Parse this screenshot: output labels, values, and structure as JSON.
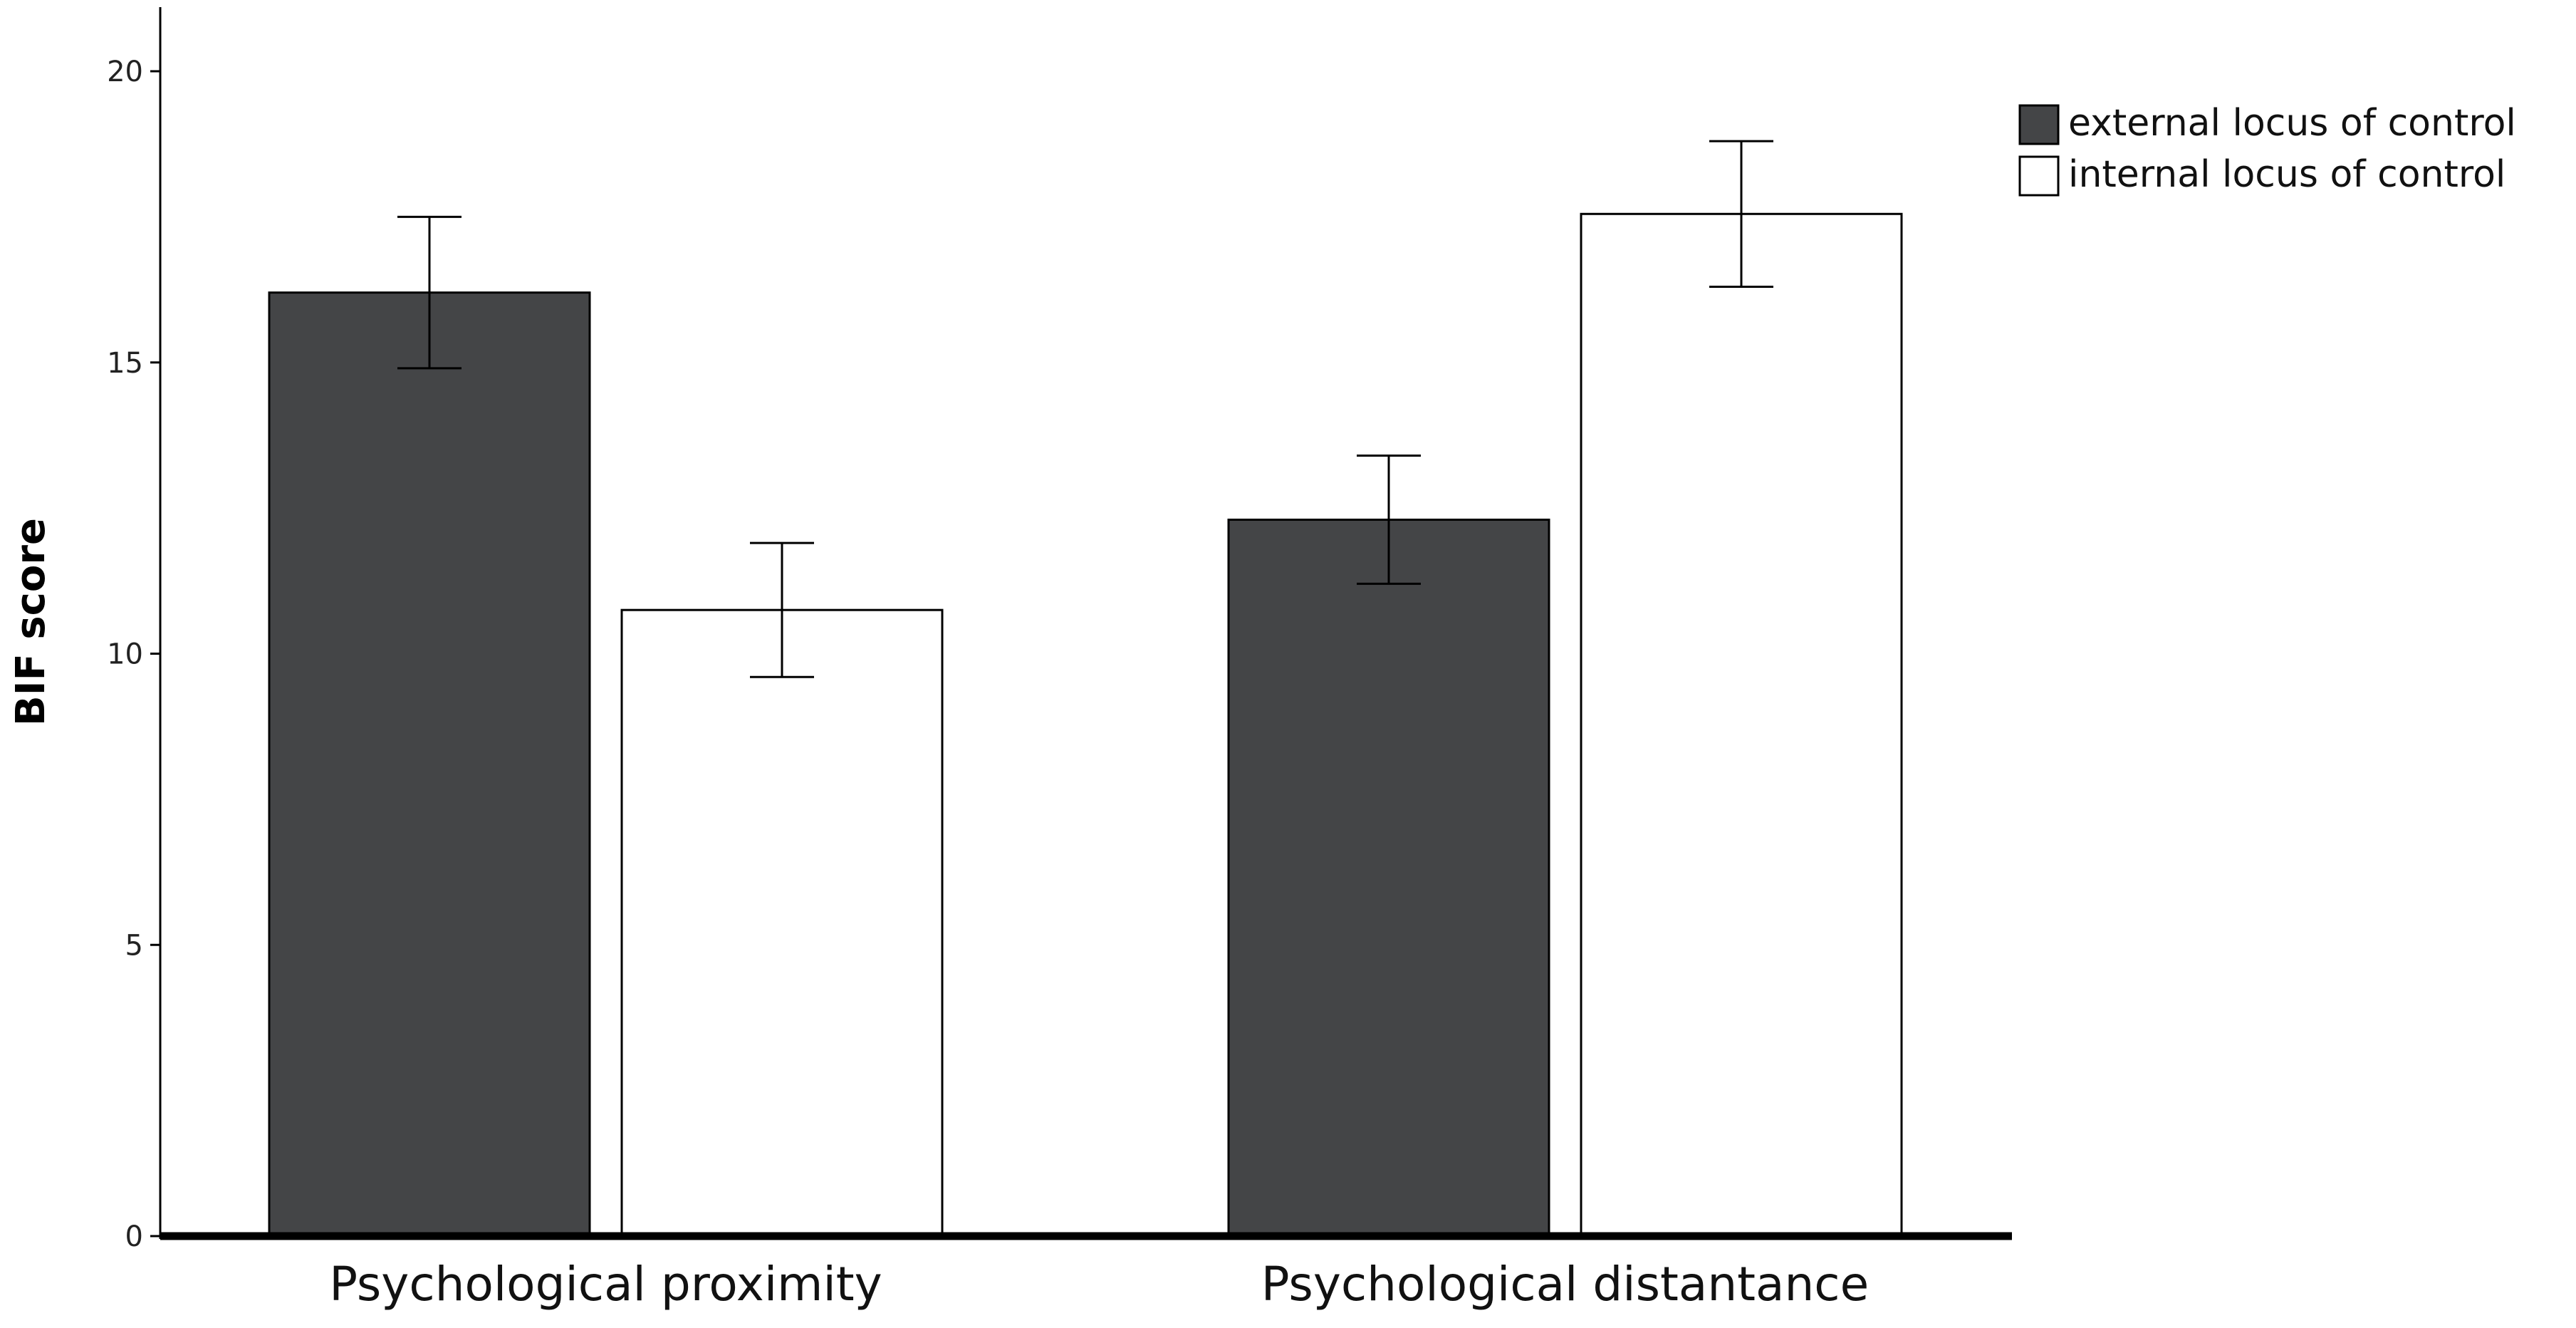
{
  "chart_data": {
    "type": "bar",
    "title": "",
    "xlabel": "",
    "ylabel": "BIF score",
    "ylim": [
      0,
      21
    ],
    "yticks": [
      0,
      5,
      10,
      15,
      20
    ],
    "ytick_labels": [
      "0",
      "5",
      "10",
      "15",
      "20"
    ],
    "grid": false,
    "legend_position": "top-right",
    "categories": [
      "Psychological proximity",
      "Psychological distantance"
    ],
    "series": [
      {
        "name": "external locus of control",
        "color": "#444547",
        "values": [
          16.2,
          12.3
        ],
        "error_low": [
          14.9,
          11.2
        ],
        "error_high": [
          17.5,
          13.4
        ]
      },
      {
        "name": "internal locus of control",
        "color": "#ffffff",
        "values": [
          10.75,
          17.55
        ],
        "error_low": [
          9.6,
          16.3
        ],
        "error_high": [
          11.9,
          18.8
        ]
      }
    ]
  }
}
